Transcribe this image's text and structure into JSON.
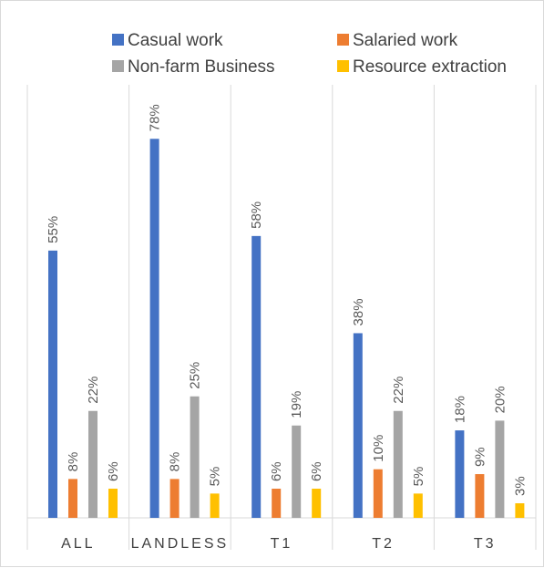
{
  "chart_data": {
    "type": "bar",
    "categories": [
      "ALL",
      "LANDLESS",
      "T1",
      "T2",
      "T3"
    ],
    "series": [
      {
        "name": "Casual work",
        "color": "#4472C4",
        "values": [
          55,
          78,
          58,
          38,
          18
        ],
        "labels": [
          "55%",
          "78%",
          "58%",
          "38%",
          "18%"
        ]
      },
      {
        "name": "Salaried work",
        "color": "#ED7D31",
        "values": [
          8,
          8,
          6,
          10,
          9
        ],
        "labels": [
          "8%",
          "8%",
          "6%",
          "10%",
          "9%"
        ]
      },
      {
        "name": "Non-farm Business",
        "color": "#A5A5A5",
        "values": [
          22,
          25,
          19,
          22,
          20
        ],
        "labels": [
          "22%",
          "25%",
          "19%",
          "22%",
          "20%"
        ]
      },
      {
        "name": "Resource extraction",
        "color": "#FFC000",
        "values": [
          6,
          5,
          6,
          5,
          3
        ],
        "labels": [
          "6%",
          "5%",
          "6%",
          "5%",
          "3%"
        ]
      }
    ],
    "ylim": [
      0,
      100
    ],
    "grid": "vertical-separators",
    "legend": "top",
    "label_orientation": "vertical"
  }
}
